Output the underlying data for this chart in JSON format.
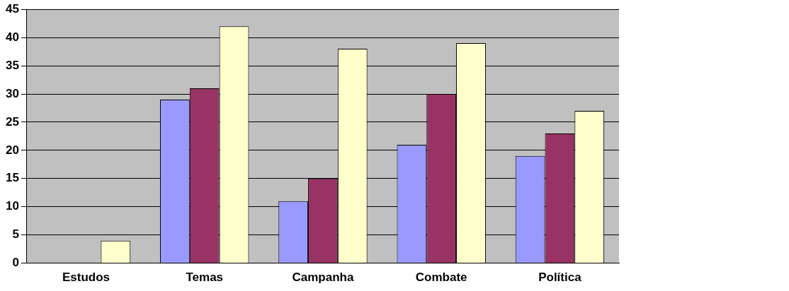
{
  "chart_data": {
    "type": "bar",
    "categories": [
      "Estudos",
      "Temas",
      "Campanha",
      "Combate",
      "Política"
    ],
    "series": [
      {
        "color": "#9999ff",
        "values": [
          0,
          29,
          11,
          21,
          19
        ]
      },
      {
        "color": "#993366",
        "values": [
          0,
          31,
          15,
          30,
          23
        ]
      },
      {
        "color": "#ffffcc",
        "values": [
          4,
          42,
          38,
          39,
          27
        ]
      }
    ],
    "ylim": [
      0,
      45
    ],
    "yticks": [
      0,
      5,
      10,
      15,
      20,
      25,
      30,
      35,
      40,
      45
    ],
    "grid": "y",
    "legend": false
  }
}
